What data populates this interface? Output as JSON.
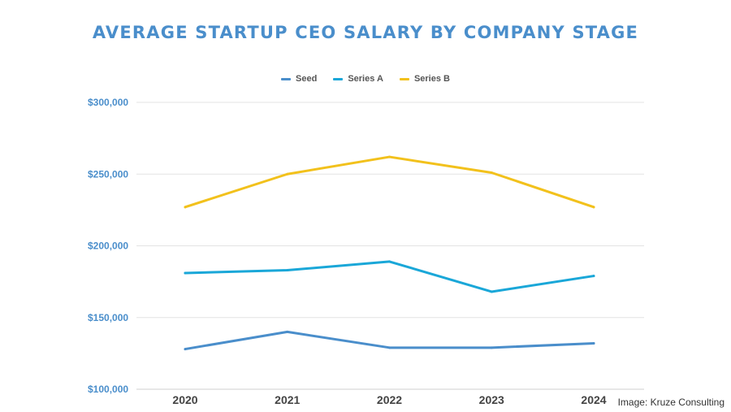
{
  "chart_data": {
    "type": "line",
    "title": "AVERAGE STARTUP CEO SALARY BY COMPANY STAGE",
    "xlabel": "",
    "ylabel": "",
    "categories": [
      "2020",
      "2021",
      "2022",
      "2023",
      "2024"
    ],
    "series": [
      {
        "name": "Seed",
        "color": "#4a8ecb",
        "values": [
          128000,
          140000,
          129000,
          129000,
          132000
        ]
      },
      {
        "name": "Series A",
        "color": "#1aa7d8",
        "values": [
          181000,
          183000,
          189000,
          168000,
          179000
        ]
      },
      {
        "name": "Series B",
        "color": "#f2c11c",
        "values": [
          227000,
          250000,
          262000,
          251000,
          227000
        ]
      }
    ],
    "ylim": [
      100000,
      300000
    ],
    "y_ticks": [
      "$100,000",
      "$150,000",
      "$200,000",
      "$250,000",
      "$300,000"
    ],
    "grid": "horizontal",
    "legend_position": "top-center"
  },
  "credit": "Image: Kruze Consulting"
}
